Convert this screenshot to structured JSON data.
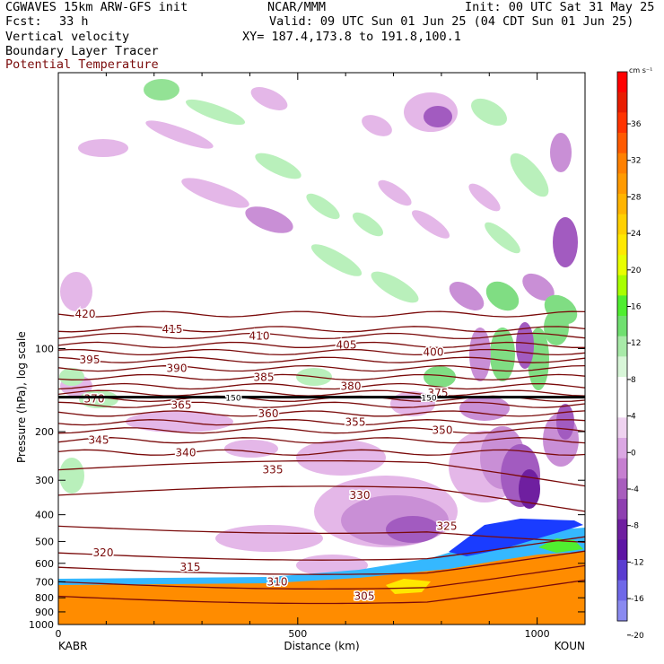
{
  "header": {
    "model": "CGWAVES 15km ARW-GFS init",
    "org": "NCAR/MMM",
    "init": "Init: 00 UTC Sat 31 May 25",
    "fcst_label": "Fcst:",
    "fcst_value": "33 h",
    "valid": "Valid: 09 UTC Sun 01 Jun 25 (04 CDT Sun 01 Jun 25)",
    "xy": "XY= 187.4,173.8 to 191.8,100.1",
    "field1": "Vertical velocity",
    "field2": "Boundary Layer Tracer",
    "field3": "Potential Temperature"
  },
  "colors": {
    "theta": "#7a0a0a",
    "neg_light": "#e4b7e8",
    "neg_mid": "#c98fd6",
    "neg_dark": "#a25bc0",
    "pos_light": "#b9f0bb",
    "pos_mid": "#80dd83",
    "terrain_orange": "#ff8c00",
    "blt_blue": "#1a3cff",
    "blt_cyan": "#35b8ff"
  },
  "chart_data": {
    "type": "contour cross-section",
    "xlabel": "Distance (km)",
    "ylabel": "Pressure (hPa), log scale",
    "x_left_label": "KABR",
    "x_right_label": "KOUN",
    "xlim": [
      0,
      1100
    ],
    "ylim_hpa": [
      1000,
      10
    ],
    "x_ticks": [
      0,
      500,
      1000
    ],
    "y_ticks": [
      100,
      200,
      300,
      400,
      500,
      600,
      700,
      800,
      900,
      1000
    ],
    "tropopause_label": "150",
    "theta_contours": [
      {
        "label": "420",
        "p": 75
      },
      {
        "label": "415",
        "p": 85
      },
      {
        "label": "410",
        "p": 90
      },
      {
        "label": "405",
        "p": 97
      },
      {
        "label": "400",
        "p": 103
      },
      {
        "label": "395",
        "p": 110
      },
      {
        "label": "390",
        "p": 118
      },
      {
        "label": "385",
        "p": 127
      },
      {
        "label": "380",
        "p": 137
      },
      {
        "label": "375",
        "p": 145
      },
      {
        "label": "370",
        "p": 152
      },
      {
        "label": "365",
        "p": 160
      },
      {
        "label": "360",
        "p": 172
      },
      {
        "label": "355",
        "p": 185
      },
      {
        "label": "350",
        "p": 198
      },
      {
        "label": "345",
        "p": 215
      },
      {
        "label": "340",
        "p": 238
      },
      {
        "label": "335",
        "p": 275
      },
      {
        "label": "330",
        "p": 340
      },
      {
        "label": "325",
        "p": 440
      },
      {
        "label": "320",
        "p": 550
      },
      {
        "label": "315",
        "p": 620
      },
      {
        "label": "310",
        "p": 700
      },
      {
        "label": "305",
        "p": 790
      }
    ],
    "colorbar": {
      "unit": "cm s⁻¹",
      "tick_labels": [
        "36",
        "32",
        "28",
        "24",
        "20",
        "16",
        "12",
        "8",
        "4",
        "0",
        "-4",
        "-8",
        "-12",
        "-16",
        "-20"
      ],
      "colors": [
        "#ff0000",
        "#e81c00",
        "#ff3300",
        "#ff5a00",
        "#ff8000",
        "#ff9a00",
        "#ffb400",
        "#ffd000",
        "#ffe800",
        "#e8ff00",
        "#a8ff00",
        "#50ee30",
        "#70e070",
        "#a8eaa8",
        "#d8f6d8",
        "#ffffff",
        "#ffffff",
        "#efd2f0",
        "#dba7e3",
        "#c67fd0",
        "#a85dbd",
        "#8e3fb0",
        "#6f1fa0",
        "#5e15a4",
        "#5a3cd0",
        "#6f68e8",
        "#8a8af0"
      ]
    }
  }
}
